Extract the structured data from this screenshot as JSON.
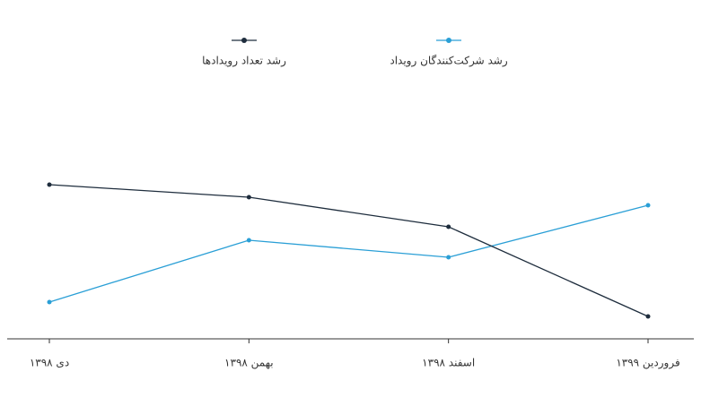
{
  "chart_data": {
    "type": "line",
    "categories": [
      "دی ۱۳۹۸",
      "بهمن ۱۳۹۸",
      "اسفند ۱۳۹۸",
      "فروردین ۱۳۹۹"
    ],
    "series": [
      {
        "name": "رشد شرکت‌کنندگان رویداد",
        "color": "#2a9fd6",
        "values": [
          41,
          110,
          91,
          149
        ]
      },
      {
        "name": "رشد تعداد رویدادها",
        "color": "#1e2d3d",
        "values": [
          172,
          158,
          125,
          25
        ]
      }
    ],
    "legend": "top"
  }
}
